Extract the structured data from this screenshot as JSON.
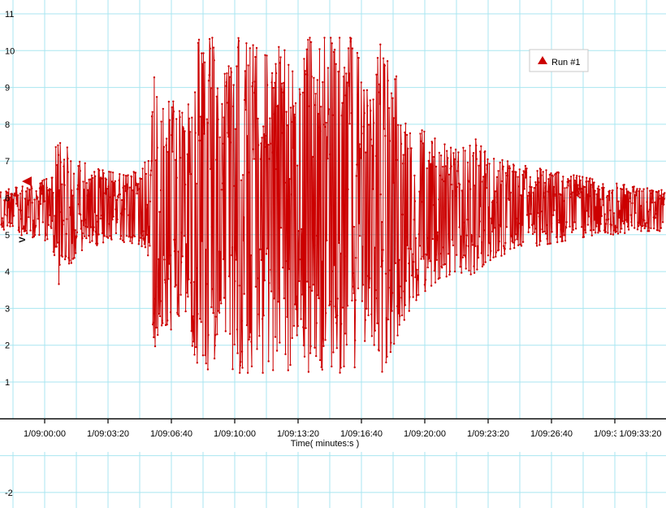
{
  "style": {
    "background": "#ffffff",
    "grid_color": "#a8e6f0",
    "series_color": "#cc0000",
    "axis_color": "#000000",
    "label_color": "#000000",
    "ylabel_color": "#990000",
    "legend_border": "#c8c8c8"
  },
  "legend": {
    "series_label": "Run #1",
    "marker": "filled-triangle-up",
    "marker_color": "#cc0000"
  },
  "chart_data": {
    "type": "line",
    "title": "",
    "xlabel": "Time( minutes:s )",
    "ylabel": "V",
    "ylim": [
      -2,
      11
    ],
    "grid": true,
    "legend_position": "top-right",
    "cursor_marker_value": 6.45,
    "y_ticks_shown": [
      11,
      10,
      9,
      8,
      7,
      6,
      5,
      4,
      3,
      2,
      1,
      -2
    ],
    "x_ticks": [
      {
        "t": 0,
        "label": "1/09:00:00"
      },
      {
        "t": 200,
        "label": "1/09:03:20"
      },
      {
        "t": 400,
        "label": "1/09:06:40"
      },
      {
        "t": 600,
        "label": "1/09:10:00"
      },
      {
        "t": 800,
        "label": "1/09:13:20"
      },
      {
        "t": 1000,
        "label": "1/09:16:40"
      },
      {
        "t": 1200,
        "label": "1/09:20:00"
      },
      {
        "t": 1400,
        "label": "1/09:23:20"
      },
      {
        "t": 1600,
        "label": "1/09:26:40"
      },
      {
        "t": 1800,
        "label": "1/09:30:00"
      },
      {
        "t": 2000,
        "label": "1/09:33:20"
      }
    ],
    "series": [
      {
        "name": "Run #1",
        "color": "#cc0000",
        "baseline": 5.6,
        "clip_high": 10.35,
        "clip_low": 1.25,
        "sample_interval_s": 1.4,
        "t_range_s": [
          -140,
          1958
        ],
        "seed": 11,
        "amplitude_envelope": [
          [
            -140,
            5.1,
            6.2
          ],
          [
            -80,
            5.0,
            6.3
          ],
          [
            -20,
            4.9,
            6.4
          ],
          [
            20,
            4.8,
            6.6
          ],
          [
            44,
            3.6,
            8.0
          ],
          [
            64,
            4.0,
            7.4
          ],
          [
            90,
            4.3,
            7.3
          ],
          [
            120,
            4.5,
            7.0
          ],
          [
            160,
            4.7,
            6.8
          ],
          [
            210,
            4.8,
            6.7
          ],
          [
            260,
            4.8,
            6.6
          ],
          [
            300,
            4.7,
            6.8
          ],
          [
            330,
            4.2,
            7.2
          ],
          [
            346,
            1.9,
            9.3
          ],
          [
            372,
            2.6,
            8.4
          ],
          [
            400,
            2.4,
            8.7
          ],
          [
            430,
            2.8,
            8.3
          ],
          [
            460,
            2.2,
            8.9
          ],
          [
            487,
            1.25,
            10.35
          ],
          [
            530,
            1.25,
            10.35
          ],
          [
            556,
            2.8,
            8.3
          ],
          [
            575,
            1.25,
            10.35
          ],
          [
            700,
            1.25,
            10.35
          ],
          [
            744,
            1.4,
            10.1
          ],
          [
            770,
            1.25,
            10.35
          ],
          [
            800,
            2.4,
            9.0
          ],
          [
            833,
            1.25,
            10.35
          ],
          [
            930,
            1.25,
            10.35
          ],
          [
            974,
            1.3,
            10.35
          ],
          [
            1026,
            2.4,
            8.7
          ],
          [
            1064,
            1.25,
            10.35
          ],
          [
            1141,
            2.8,
            8.6
          ],
          [
            1179,
            3.3,
            7.9
          ],
          [
            1218,
            3.6,
            7.7
          ],
          [
            1256,
            3.8,
            7.5
          ],
          [
            1295,
            4.0,
            7.3
          ],
          [
            1360,
            3.9,
            7.6
          ],
          [
            1410,
            4.3,
            7.1
          ],
          [
            1460,
            4.5,
            7.0
          ],
          [
            1500,
            4.7,
            6.9
          ],
          [
            1560,
            4.7,
            6.8
          ],
          [
            1620,
            4.8,
            6.7
          ],
          [
            1680,
            4.9,
            6.6
          ],
          [
            1740,
            5.0,
            6.5
          ],
          [
            1800,
            5.0,
            6.4
          ],
          [
            1870,
            5.1,
            6.3
          ],
          [
            1960,
            5.1,
            6.2
          ]
        ]
      }
    ]
  }
}
